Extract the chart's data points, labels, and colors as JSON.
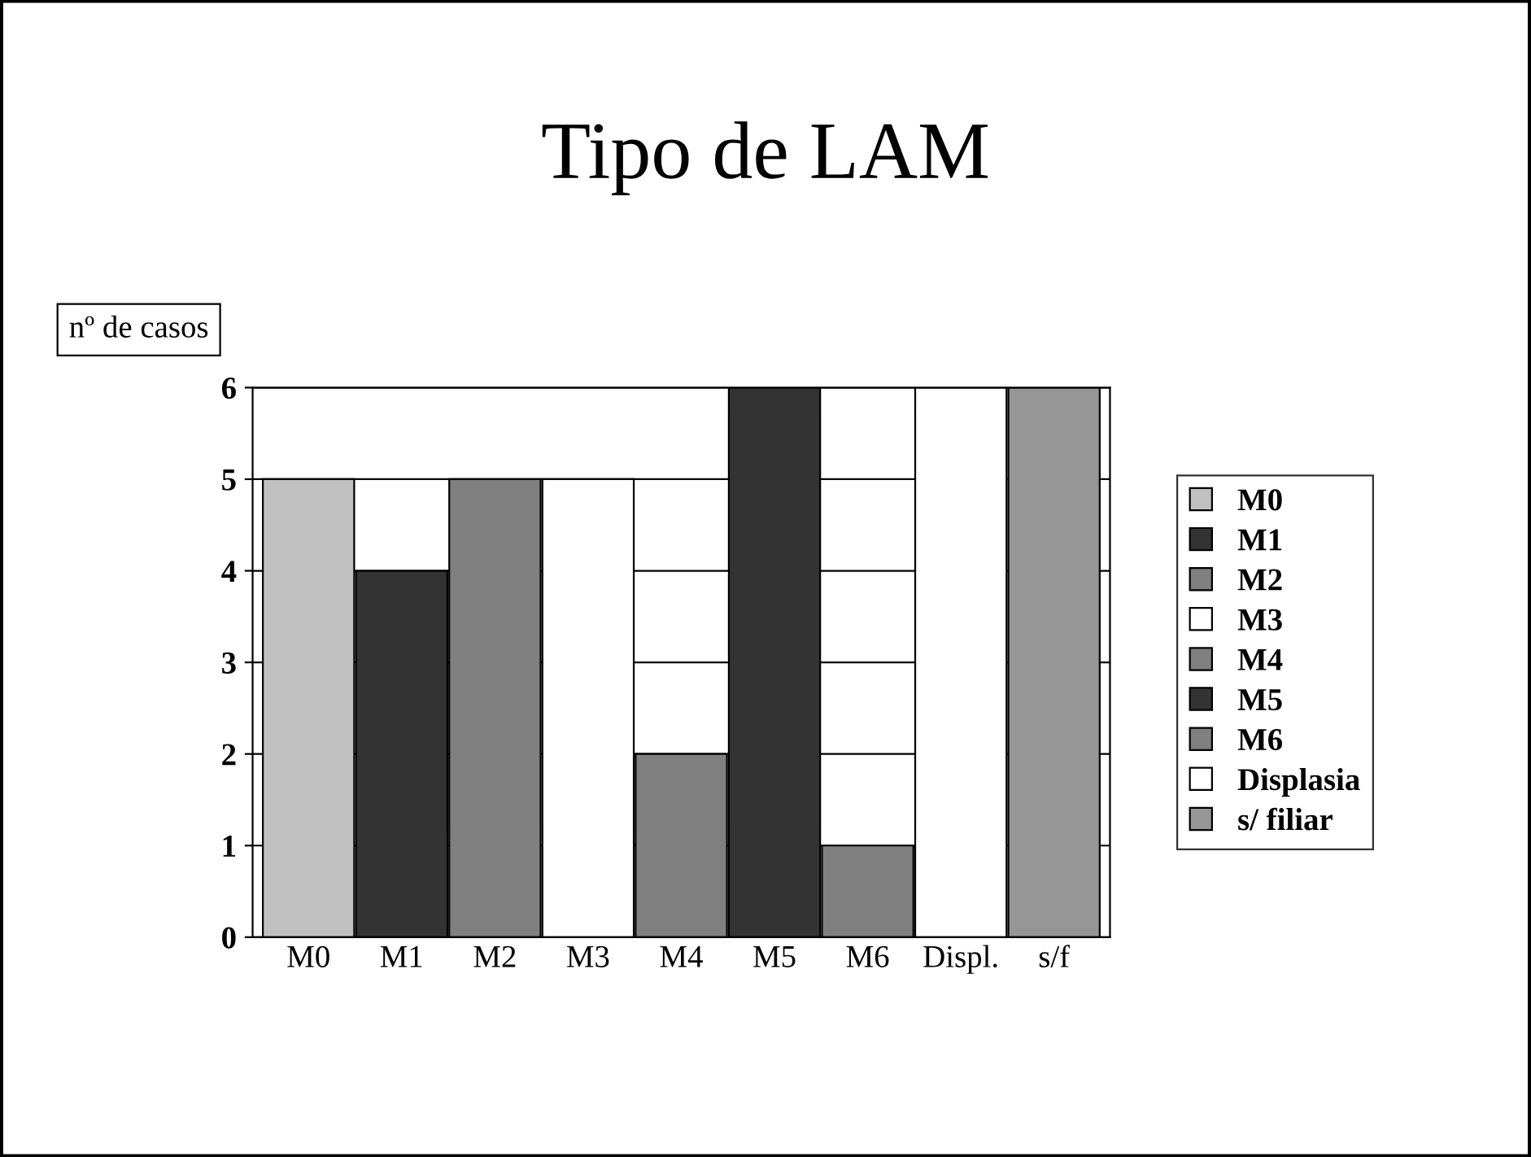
{
  "chart_data": {
    "type": "bar",
    "title": "Tipo de LAM",
    "ylabel": "nº de casos",
    "categories": [
      "M0",
      "M1",
      "M2",
      "M3",
      "M4",
      "M5",
      "M6",
      "Displ.",
      "s/f"
    ],
    "series": [
      {
        "name": "M0",
        "color": "#c0c0c0",
        "values": [
          5,
          null,
          null,
          null,
          null,
          null,
          null,
          null,
          null
        ]
      },
      {
        "name": "M1",
        "color": "#333333",
        "values": [
          null,
          4,
          null,
          null,
          null,
          null,
          null,
          null,
          null
        ]
      },
      {
        "name": "M2",
        "color": "#808080",
        "values": [
          null,
          null,
          5,
          null,
          null,
          null,
          null,
          null,
          null
        ]
      },
      {
        "name": "M3",
        "color": "#ffffff",
        "values": [
          null,
          null,
          null,
          5,
          null,
          null,
          null,
          null,
          null
        ]
      },
      {
        "name": "M4",
        "color": "#808080",
        "values": [
          null,
          null,
          null,
          null,
          2,
          null,
          null,
          null,
          null
        ]
      },
      {
        "name": "M5",
        "color": "#333333",
        "values": [
          null,
          null,
          null,
          null,
          null,
          6,
          null,
          null,
          null
        ]
      },
      {
        "name": "M6",
        "color": "#808080",
        "values": [
          null,
          null,
          null,
          null,
          null,
          null,
          1,
          null,
          null
        ]
      },
      {
        "name": "Displasia",
        "color": "#ffffff",
        "values": [
          null,
          null,
          null,
          null,
          null,
          null,
          null,
          6,
          null
        ]
      },
      {
        "name": "s/ filiar",
        "color": "#969696",
        "values": [
          null,
          null,
          null,
          null,
          null,
          null,
          null,
          null,
          6
        ]
      }
    ],
    "ylim": [
      0,
      6
    ],
    "yticks": [
      0,
      1,
      2,
      3,
      4,
      5,
      6
    ],
    "grid": "y",
    "legend": "right"
  }
}
